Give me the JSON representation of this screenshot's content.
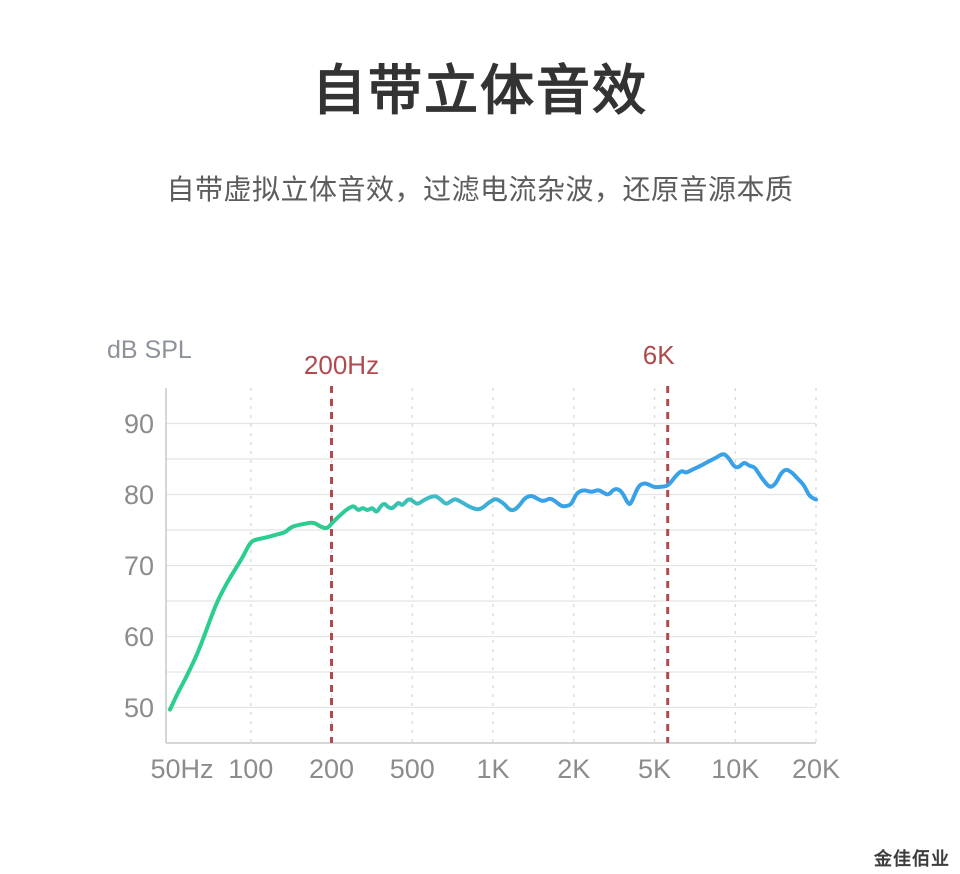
{
  "page": {
    "title": "自带立体音效",
    "subtitle": "自带虚拟立体音效，过滤电流杂波，还原音源本质",
    "watermark": "金佳佰业"
  },
  "colors": {
    "title_text": "#333333",
    "subtitle_text": "#5c5c5c",
    "axis_text": "#8c8c8c",
    "ylabel_text": "#8e939b",
    "marker_red": "#b04a4e",
    "grid_horizontal": "#e4e4e4",
    "grid_vertical": "#d8d8d8",
    "axis_line": "#c5c8ca",
    "line_green": "#2bce8e",
    "line_teal": "#3fbcc6",
    "line_blue": "#38a1e8",
    "watermark_text": "#3d3d3d"
  },
  "chart_data": {
    "type": "line",
    "title": "",
    "ylabel": "dB SPL",
    "xlabel": "",
    "grid": true,
    "x_scale": "log-stylized",
    "x_tick_labels": [
      "50Hz",
      "100",
      "200",
      "500",
      "1K",
      "2K",
      "5K",
      "10K",
      "20K"
    ],
    "x_tick_freqs": [
      50,
      100,
      200,
      500,
      1000,
      2000,
      5000,
      10000,
      20000
    ],
    "y_tick_labels": [
      90,
      80,
      70,
      60,
      50
    ],
    "y_grid_values": [
      50,
      55,
      60,
      65,
      70,
      75,
      80,
      85,
      90
    ],
    "ylim": [
      45,
      95
    ],
    "markers": [
      {
        "label": "200Hz",
        "freq": 200
      },
      {
        "label": "6K",
        "freq": 5600
      }
    ],
    "series": [
      {
        "name": "frequency-response",
        "color_gradient": [
          "#2bce8e",
          "#3fbcc6",
          "#38a1e8"
        ],
        "points": [
          [
            50,
            49.7
          ],
          [
            53,
            51.8
          ],
          [
            57,
            54.0
          ],
          [
            61,
            56.3
          ],
          [
            65,
            58.7
          ],
          [
            68,
            60.7
          ],
          [
            71,
            62.6
          ],
          [
            74,
            64.4
          ],
          [
            78,
            66.2
          ],
          [
            82,
            67.7
          ],
          [
            86,
            69.0
          ],
          [
            90,
            70.2
          ],
          [
            94,
            71.4
          ],
          [
            100,
            73.4
          ],
          [
            106,
            73.7
          ],
          [
            113,
            73.9
          ],
          [
            121,
            74.2
          ],
          [
            129,
            74.5
          ],
          [
            135,
            74.7
          ],
          [
            141,
            75.4
          ],
          [
            150,
            75.7
          ],
          [
            160,
            75.9
          ],
          [
            172,
            76.1
          ],
          [
            183,
            75.4
          ],
          [
            193,
            75.2
          ],
          [
            200,
            75.9
          ],
          [
            210,
            76.5
          ],
          [
            221,
            77.1
          ],
          [
            233,
            77.7
          ],
          [
            247,
            78.2
          ],
          [
            258,
            78.4
          ],
          [
            271,
            77.7
          ],
          [
            286,
            78.2
          ],
          [
            300,
            77.7
          ],
          [
            318,
            78.2
          ],
          [
            333,
            77.4
          ],
          [
            348,
            78.3
          ],
          [
            364,
            78.8
          ],
          [
            380,
            78.2
          ],
          [
            398,
            78.0
          ],
          [
            414,
            78.5
          ],
          [
            430,
            78.9
          ],
          [
            446,
            78.4
          ],
          [
            464,
            79.0
          ],
          [
            482,
            79.4
          ],
          [
            502,
            79.1
          ],
          [
            522,
            78.6
          ],
          [
            542,
            79.0
          ],
          [
            564,
            79.4
          ],
          [
            590,
            79.7
          ],
          [
            614,
            79.8
          ],
          [
            642,
            79.2
          ],
          [
            668,
            78.6
          ],
          [
            694,
            79.0
          ],
          [
            720,
            79.4
          ],
          [
            750,
            79.1
          ],
          [
            782,
            78.7
          ],
          [
            814,
            78.3
          ],
          [
            852,
            78.0
          ],
          [
            882,
            77.9
          ],
          [
            914,
            78.1
          ],
          [
            952,
            78.7
          ],
          [
            988,
            79.1
          ],
          [
            1022,
            79.4
          ],
          [
            1062,
            79.1
          ],
          [
            1108,
            78.6
          ],
          [
            1152,
            77.8
          ],
          [
            1202,
            77.8
          ],
          [
            1258,
            78.5
          ],
          [
            1312,
            79.5
          ],
          [
            1392,
            79.9
          ],
          [
            1462,
            79.4
          ],
          [
            1542,
            79.0
          ],
          [
            1632,
            79.5
          ],
          [
            1702,
            79.1
          ],
          [
            1802,
            78.3
          ],
          [
            1902,
            78.4
          ],
          [
            1966,
            78.7
          ],
          [
            2060,
            80.2
          ],
          [
            2250,
            80.7
          ],
          [
            2440,
            80.3
          ],
          [
            2650,
            80.7
          ],
          [
            2810,
            80.2
          ],
          [
            2970,
            79.9
          ],
          [
            3180,
            80.9
          ],
          [
            3450,
            80.5
          ],
          [
            3730,
            78.5
          ],
          [
            3860,
            78.9
          ],
          [
            4170,
            81.3
          ],
          [
            4460,
            81.6
          ],
          [
            4700,
            81.4
          ],
          [
            5000,
            81.0
          ],
          [
            5400,
            81.1
          ],
          [
            5650,
            81.3
          ],
          [
            6020,
            82.7
          ],
          [
            6330,
            83.4
          ],
          [
            6550,
            83.0
          ],
          [
            6900,
            83.5
          ],
          [
            7400,
            84.0
          ],
          [
            7900,
            84.6
          ],
          [
            8500,
            85.2
          ],
          [
            9000,
            85.8
          ],
          [
            9400,
            85.3
          ],
          [
            9900,
            83.9
          ],
          [
            10300,
            83.8
          ],
          [
            10800,
            84.6
          ],
          [
            11300,
            84.0
          ],
          [
            11800,
            83.9
          ],
          [
            12300,
            82.8
          ],
          [
            12800,
            81.9
          ],
          [
            13500,
            80.9
          ],
          [
            14200,
            81.6
          ],
          [
            14800,
            83.0
          ],
          [
            15450,
            83.6
          ],
          [
            16300,
            83.1
          ],
          [
            17100,
            82.2
          ],
          [
            18000,
            81.4
          ],
          [
            18800,
            79.9
          ],
          [
            19400,
            79.5
          ],
          [
            20000,
            79.3
          ]
        ]
      }
    ],
    "legend": null
  }
}
